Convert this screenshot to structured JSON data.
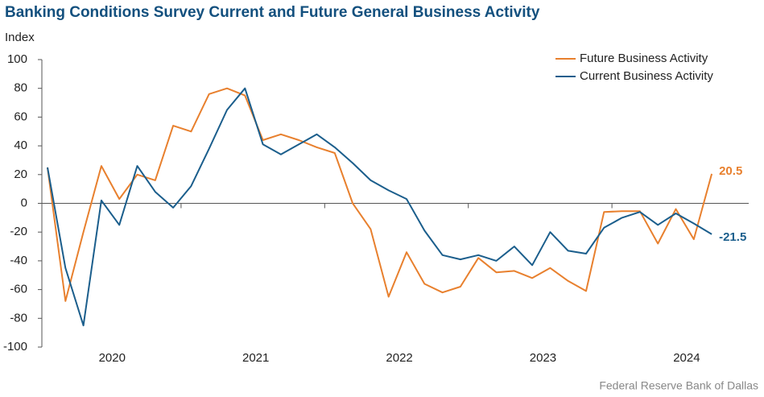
{
  "chart_data": {
    "type": "line",
    "title": "Banking Conditions Survey Current and Future General Business Activity",
    "y_label": "Index",
    "source": "Federal Reserve Bank of Dallas",
    "categories": [
      null,
      null,
      null,
      null,
      null,
      null,
      null,
      null,
      null,
      null,
      null,
      null,
      null,
      null,
      null,
      null,
      null,
      null,
      null,
      null,
      null,
      null,
      null,
      null,
      null,
      null,
      null,
      null,
      null,
      null,
      null,
      null,
      null,
      null,
      null,
      null,
      null,
      null
    ],
    "year_labels": [
      "2020",
      "2021",
      "2022",
      "2023",
      "2024"
    ],
    "ylim": [
      -100,
      100
    ],
    "yticks": [
      -100,
      -80,
      -60,
      -40,
      -20,
      0,
      20,
      40,
      60,
      80,
      100
    ],
    "legend": "top-right",
    "series": [
      {
        "name": "Future Business Activity",
        "color": "#e8802e",
        "end_label": "20.5",
        "values": [
          25,
          -68,
          -20,
          26,
          3,
          20,
          16,
          54,
          50,
          76,
          80,
          75,
          44,
          48,
          44,
          39,
          35,
          0,
          -18,
          -65,
          -34,
          -56,
          -62,
          -58,
          -38,
          -48,
          -47,
          -52,
          -45,
          -54,
          -61,
          -6,
          -5.5,
          -5.5,
          -28,
          -4,
          -25,
          20.5
        ]
      },
      {
        "name": "Current Business Activity",
        "color": "#1b5e8c",
        "end_label": "-21.5",
        "values": [
          25,
          -45,
          -85,
          2,
          -15,
          26,
          8,
          -3,
          12,
          38,
          65,
          80,
          41,
          34,
          41,
          48,
          39,
          28,
          16,
          9,
          3,
          -19,
          -36,
          -39,
          -36,
          -40,
          -30,
          -43,
          -20,
          -33,
          -35,
          -17,
          -10,
          -6,
          -15,
          -7,
          -14,
          -21.5
        ]
      }
    ]
  }
}
